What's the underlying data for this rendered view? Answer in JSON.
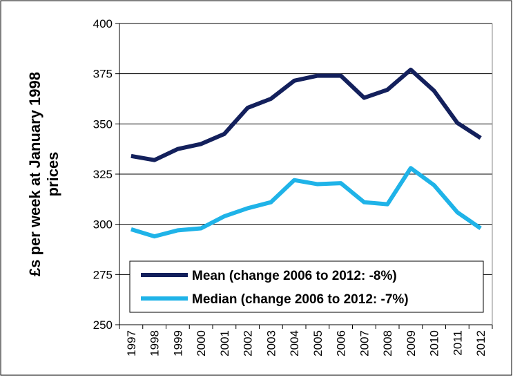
{
  "chart_data": {
    "type": "line",
    "ylabel": [
      "£s per week at January 1998",
      "prices"
    ],
    "categories": [
      "1997",
      "1998",
      "1999",
      "2000",
      "2001",
      "2002",
      "2003",
      "2004",
      "2005",
      "2006",
      "2007",
      "2008",
      "2009",
      "2010",
      "2011",
      "2012"
    ],
    "series": [
      {
        "name": "Mean (change 2006 to 2012: -8%)",
        "color": "#13205c",
        "values": [
          334,
          332,
          337.5,
          340,
          345,
          358,
          362.5,
          371.5,
          374,
          374,
          363,
          367,
          377,
          366.5,
          350.5,
          343
        ]
      },
      {
        "name": "Median (change 2006 to 2012: -7%)",
        "color": "#1fb3e8",
        "values": [
          297.5,
          294,
          297,
          298,
          304,
          308,
          311,
          322,
          320,
          320.5,
          311,
          310,
          328,
          319.5,
          306,
          298
        ]
      }
    ],
    "ylim": [
      250,
      400
    ],
    "yticks": [
      250,
      275,
      300,
      325,
      350,
      375,
      400
    ],
    "grid": true,
    "legend": "bottom"
  }
}
